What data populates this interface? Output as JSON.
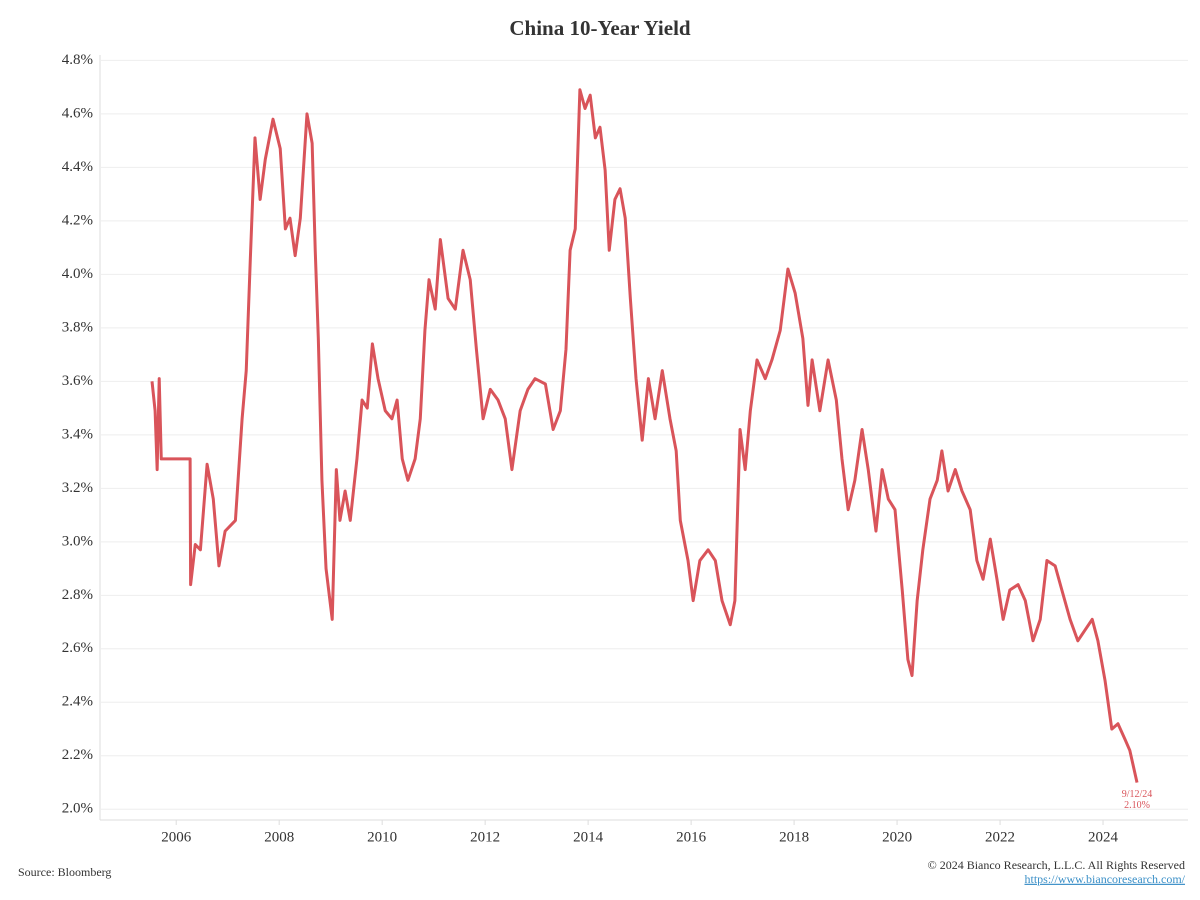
{
  "chart_data": {
    "type": "line",
    "title": "China 10-Year Yield",
    "x": [
      2005.53,
      2005.59,
      2005.63,
      2005.67,
      2005.71,
      2006.27,
      2006.28,
      2006.37,
      2006.47,
      2006.6,
      2006.72,
      2006.83,
      2006.95,
      2007.15,
      2007.28,
      2007.36,
      2007.44,
      2007.53,
      2007.63,
      2007.73,
      2007.88,
      2008.02,
      2008.12,
      2008.21,
      2008.31,
      2008.41,
      2008.54,
      2008.64,
      2008.7,
      2008.76,
      2008.83,
      2008.91,
      2009.03,
      2009.11,
      2009.18,
      2009.28,
      2009.38,
      2009.51,
      2009.61,
      2009.71,
      2009.81,
      2009.92,
      2010.06,
      2010.19,
      2010.29,
      2010.39,
      2010.5,
      2010.64,
      2010.74,
      2010.83,
      2010.91,
      2011.03,
      2011.13,
      2011.28,
      2011.42,
      2011.57,
      2011.71,
      2011.83,
      2011.96,
      2012.1,
      2012.25,
      2012.39,
      2012.52,
      2012.68,
      2012.83,
      2012.97,
      2013.17,
      2013.32,
      2013.46,
      2013.57,
      2013.65,
      2013.75,
      2013.84,
      2013.94,
      2014.04,
      2014.14,
      2014.23,
      2014.33,
      2014.41,
      2014.52,
      2014.62,
      2014.72,
      2014.82,
      2014.93,
      2015.05,
      2015.17,
      2015.3,
      2015.44,
      2015.59,
      2015.71,
      2015.79,
      2015.94,
      2016.04,
      2016.17,
      2016.33,
      2016.47,
      2016.6,
      2016.76,
      2016.85,
      2016.95,
      2017.05,
      2017.15,
      2017.28,
      2017.44,
      2017.57,
      2017.73,
      2017.88,
      2018.02,
      2018.17,
      2018.27,
      2018.35,
      2018.5,
      2018.66,
      2018.82,
      2018.93,
      2019.05,
      2019.18,
      2019.32,
      2019.44,
      2019.59,
      2019.71,
      2019.83,
      2019.96,
      2020.1,
      2020.21,
      2020.29,
      2020.39,
      2020.5,
      2020.64,
      2020.78,
      2020.87,
      2020.99,
      2021.13,
      2021.26,
      2021.42,
      2021.55,
      2021.67,
      2021.81,
      2021.94,
      2022.06,
      2022.19,
      2022.35,
      2022.49,
      2022.64,
      2022.78,
      2022.91,
      2023.07,
      2023.2,
      2023.36,
      2023.51,
      2023.65,
      2023.79,
      2023.9,
      2024.04,
      2024.17,
      2024.29,
      2024.43,
      2024.52,
      2024.66
    ],
    "values": [
      3.6,
      3.49,
      3.27,
      3.61,
      3.31,
      3.31,
      2.84,
      2.99,
      2.97,
      3.29,
      3.16,
      2.91,
      3.04,
      3.08,
      3.46,
      3.64,
      4.06,
      4.51,
      4.28,
      4.43,
      4.58,
      4.47,
      4.17,
      4.21,
      4.07,
      4.21,
      4.6,
      4.49,
      4.09,
      3.76,
      3.23,
      2.9,
      2.71,
      3.27,
      3.08,
      3.19,
      3.08,
      3.31,
      3.53,
      3.5,
      3.74,
      3.61,
      3.49,
      3.46,
      3.53,
      3.31,
      3.23,
      3.31,
      3.46,
      3.79,
      3.98,
      3.87,
      4.13,
      3.91,
      3.87,
      4.09,
      3.98,
      3.72,
      3.46,
      3.57,
      3.53,
      3.46,
      3.27,
      3.49,
      3.57,
      3.61,
      3.59,
      3.42,
      3.49,
      3.72,
      4.09,
      4.17,
      4.69,
      4.62,
      4.67,
      4.51,
      4.55,
      4.39,
      4.09,
      4.28,
      4.32,
      4.21,
      3.91,
      3.61,
      3.38,
      3.61,
      3.46,
      3.64,
      3.46,
      3.34,
      3.08,
      2.93,
      2.78,
      2.93,
      2.97,
      2.93,
      2.78,
      2.69,
      2.78,
      3.42,
      3.27,
      3.49,
      3.68,
      3.61,
      3.68,
      3.79,
      4.02,
      3.93,
      3.76,
      3.51,
      3.68,
      3.49,
      3.68,
      3.53,
      3.31,
      3.12,
      3.23,
      3.42,
      3.27,
      3.04,
      3.27,
      3.16,
      3.12,
      2.82,
      2.56,
      2.5,
      2.78,
      2.97,
      3.16,
      3.23,
      3.34,
      3.19,
      3.27,
      3.19,
      3.12,
      2.93,
      2.86,
      3.01,
      2.86,
      2.71,
      2.82,
      2.84,
      2.78,
      2.63,
      2.71,
      2.93,
      2.91,
      2.82,
      2.71,
      2.63,
      2.67,
      2.71,
      2.63,
      2.48,
      2.3,
      2.32,
      2.26,
      2.22,
      2.1
    ],
    "color": "#d9545a",
    "xlim": [
      2004.52,
      2025.65
    ],
    "ylim": [
      1.96,
      4.82
    ],
    "xticks": [
      2006,
      2008,
      2010,
      2012,
      2014,
      2016,
      2018,
      2020,
      2022,
      2024
    ],
    "yticks": [
      {
        "value": 2.0,
        "label": "2.0%"
      },
      {
        "value": 2.2,
        "label": "2.2%"
      },
      {
        "value": 2.4,
        "label": "2.4%"
      },
      {
        "value": 2.6,
        "label": "2.6%"
      },
      {
        "value": 2.8,
        "label": "2.8%"
      },
      {
        "value": 3.0,
        "label": "3.0%"
      },
      {
        "value": 3.2,
        "label": "3.2%"
      },
      {
        "value": 3.4,
        "label": "3.4%"
      },
      {
        "value": 3.6,
        "label": "3.6%"
      },
      {
        "value": 3.8,
        "label": "3.8%"
      },
      {
        "value": 4.0,
        "label": "4.0%"
      },
      {
        "value": 4.2,
        "label": "4.2%"
      },
      {
        "value": 4.4,
        "label": "4.4%"
      },
      {
        "value": 4.6,
        "label": "4.6%"
      },
      {
        "value": 4.8,
        "label": "4.8%"
      }
    ],
    "grid": true,
    "end_annotation": [
      "9/12/24",
      "2.10%"
    ],
    "source": "Source: Bloomberg",
    "copyright": "© 2024 Bianco Research, L.L.C. All Rights Reserved",
    "link": "https://www.biancoresearch.com/"
  }
}
